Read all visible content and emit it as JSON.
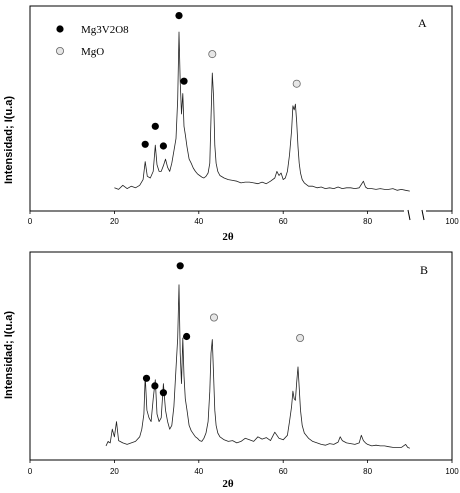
{
  "chart_data": [
    {
      "type": "line",
      "panel": "A",
      "xlabel": "2θ",
      "ylabel": "Intensidad; I(u.a)",
      "xlim": [
        0,
        100
      ],
      "x_ticks": [
        0,
        20,
        40,
        60,
        80,
        100
      ],
      "x_tick_labels": [
        "0",
        "20",
        "40",
        "60",
        "80",
        "100"
      ],
      "y_ticks": false,
      "grid": false,
      "legend": {
        "placement": "top-left",
        "entries": [
          {
            "label": "Mg3V2O8",
            "marker": "filled-circle"
          },
          {
            "label": "MgO",
            "marker": "open-circle"
          }
        ]
      },
      "series": [
        {
          "x": [
            20,
            21,
            22,
            23,
            24,
            25,
            26,
            26.8,
            27.3,
            27.8,
            28.5,
            29.2,
            29.7,
            30.1,
            30.6,
            31.1,
            31.6,
            32.1,
            32.6,
            33.1,
            33.6,
            34.1,
            34.6,
            35.0,
            35.3,
            35.6,
            35.9,
            36.2,
            36.5,
            36.8,
            37.2,
            37.7,
            38.2,
            38.7,
            39.2,
            39.7,
            40.2,
            40.7,
            41.2,
            41.7,
            42.2,
            42.6,
            42.9,
            43.2,
            43.5,
            43.8,
            44.1,
            44.5,
            45,
            46,
            47,
            48,
            49,
            50,
            51,
            52,
            53,
            54,
            55,
            56,
            57,
            58,
            58.5,
            59,
            59.5,
            60,
            60.5,
            61,
            61.5,
            62,
            62.3,
            62.6,
            62.9,
            63.2,
            63.5,
            63.8,
            64.1,
            64.5,
            65,
            66,
            67,
            68,
            69,
            70,
            71,
            72,
            73,
            74,
            75,
            76,
            77,
            78,
            78.5,
            79,
            79.5,
            80,
            81,
            82,
            83,
            84,
            85,
            86,
            87,
            88,
            89,
            90
          ],
          "y": [
            10,
            8,
            13,
            9,
            12,
            10,
            13,
            20,
            42,
            24,
            22,
            30,
            62,
            38,
            30,
            30,
            37,
            45,
            35,
            30,
            40,
            55,
            70,
            118,
            200,
            140,
            100,
            125,
            85,
            75,
            60,
            45,
            40,
            34,
            30,
            27,
            25,
            23,
            22,
            24,
            28,
            40,
            95,
            150,
            120,
            62,
            40,
            30,
            25,
            22,
            20,
            19,
            18,
            16,
            17,
            17,
            16,
            15,
            17,
            15,
            18,
            22,
            30,
            25,
            28,
            20,
            22,
            30,
            50,
            80,
            110,
            105,
            112,
            90,
            60,
            40,
            28,
            20,
            16,
            12,
            12,
            10,
            11,
            9,
            10,
            9,
            11,
            9,
            10,
            10,
            9,
            10,
            14,
            18,
            11,
            9,
            9,
            8,
            9,
            8,
            8,
            9,
            7,
            8,
            7,
            6
          ]
        }
      ],
      "annotations": [
        {
          "marker": "filled-circle",
          "x": 27.3,
          "y": 63
        },
        {
          "marker": "filled-circle",
          "x": 29.7,
          "y": 85
        },
        {
          "marker": "filled-circle",
          "x": 31.6,
          "y": 61
        },
        {
          "marker": "filled-circle",
          "x": 35.3,
          "y": 220
        },
        {
          "marker": "filled-circle",
          "x": 36.5,
          "y": 140
        },
        {
          "marker": "open-circle",
          "x": 43.2,
          "y": 173
        },
        {
          "marker": "open-circle",
          "x": 63.2,
          "y": 137
        }
      ]
    },
    {
      "type": "line",
      "panel": "B",
      "xlabel": "2θ",
      "ylabel": "Intensidad; I(u.a)",
      "xlim": [
        0,
        100
      ],
      "x_ticks": [
        0,
        20,
        40,
        60,
        80,
        100
      ],
      "x_tick_labels": [
        "0",
        "20",
        "40",
        "60",
        "80",
        "100"
      ],
      "y_ticks": false,
      "grid": false,
      "series": [
        {
          "x": [
            18,
            18.5,
            19,
            19.5,
            20,
            20.5,
            21,
            22,
            23,
            24,
            25,
            26,
            26.5,
            27,
            27.3,
            27.7,
            28.2,
            28.7,
            29.2,
            29.7,
            30.1,
            30.6,
            31.1,
            31.6,
            32.1,
            32.6,
            33.1,
            33.6,
            34.1,
            34.6,
            35.0,
            35.3,
            35.6,
            35.9,
            36.2,
            36.5,
            36.8,
            37.2,
            37.7,
            38.2,
            38.7,
            39.2,
            39.7,
            40.2,
            40.7,
            41.2,
            41.7,
            42.2,
            42.6,
            42.9,
            43.2,
            43.5,
            43.8,
            44.1,
            44.5,
            45,
            46,
            47,
            48,
            49,
            50,
            51,
            52,
            53,
            54,
            55,
            56,
            57,
            58,
            59,
            60,
            61,
            61.5,
            62,
            62.3,
            62.6,
            62.9,
            63.2,
            63.5,
            63.8,
            64.1,
            64.5,
            65,
            66,
            67,
            68,
            69,
            70,
            71,
            72,
            73,
            73.5,
            74,
            75,
            76,
            77,
            78,
            78.5,
            79,
            79.5,
            80,
            81,
            82,
            83,
            84,
            85,
            86,
            87,
            88,
            89,
            89.5,
            90
          ],
          "y": [
            8,
            14,
            12,
            30,
            20,
            40,
            15,
            12,
            10,
            12,
            14,
            20,
            30,
            50,
            100,
            55,
            45,
            40,
            70,
            95,
            50,
            40,
            45,
            90,
            55,
            40,
            30,
            35,
            60,
            110,
            150,
            220,
            130,
            90,
            150,
            100,
            70,
            55,
            35,
            28,
            24,
            20,
            18,
            15,
            14,
            18,
            25,
            40,
            80,
            130,
            148,
            100,
            55,
            35,
            25,
            20,
            16,
            14,
            15,
            12,
            14,
            18,
            16,
            14,
            20,
            17,
            19,
            15,
            26,
            18,
            16,
            22,
            40,
            60,
            80,
            70,
            68,
            92,
            112,
            85,
            55,
            35,
            25,
            18,
            14,
            12,
            10,
            9,
            11,
            10,
            13,
            20,
            15,
            12,
            11,
            10,
            12,
            22,
            15,
            12,
            10,
            8,
            9,
            8,
            8,
            7,
            6,
            6,
            6,
            10,
            6,
            5
          ]
        }
      ],
      "annotations": [
        {
          "marker": "filled-circle",
          "x": 27.6,
          "y": 97
        },
        {
          "marker": "filled-circle",
          "x": 29.6,
          "y": 87
        },
        {
          "marker": "filled-circle",
          "x": 31.6,
          "y": 78
        },
        {
          "marker": "filled-circle",
          "x": 35.6,
          "y": 245
        },
        {
          "marker": "filled-circle",
          "x": 37.1,
          "y": 152
        },
        {
          "marker": "open-circle",
          "x": 43.6,
          "y": 177
        },
        {
          "marker": "open-circle",
          "x": 64.0,
          "y": 150
        }
      ]
    }
  ]
}
